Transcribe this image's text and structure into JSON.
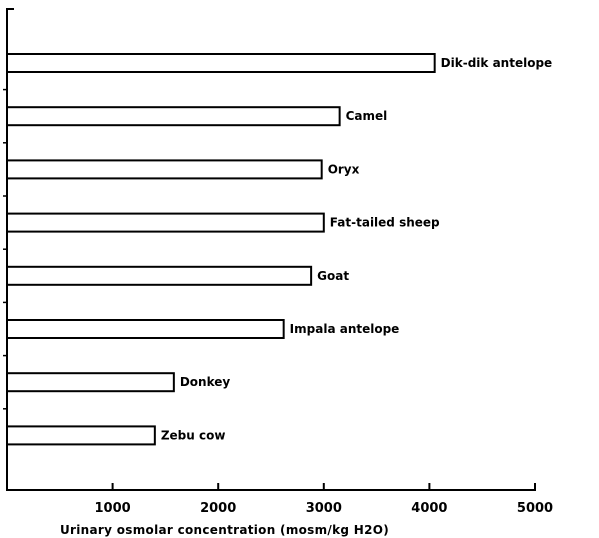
{
  "chart_data": {
    "type": "bar",
    "orientation": "horizontal",
    "categories": [
      "Dik-dik antelope",
      "Camel",
      "Oryx",
      "Fat-tailed sheep",
      "Goat",
      "Impala antelope",
      "Donkey",
      "Zebu cow"
    ],
    "values": [
      4050,
      3150,
      2980,
      3000,
      2880,
      2620,
      1580,
      1400
    ],
    "xlabel": "Urinary osmolar concentration (mosm/kg H2O)",
    "ylabel": "",
    "xlim": [
      0,
      5000
    ],
    "xticks": [
      1000,
      2000,
      3000,
      4000,
      5000
    ],
    "xtick_labels": [
      "1000",
      "2000",
      "3000",
      "4000",
      "5000"
    ],
    "grid": false,
    "legend": "none",
    "bar_fill": "#ffffff",
    "bar_stroke": "#000000"
  }
}
